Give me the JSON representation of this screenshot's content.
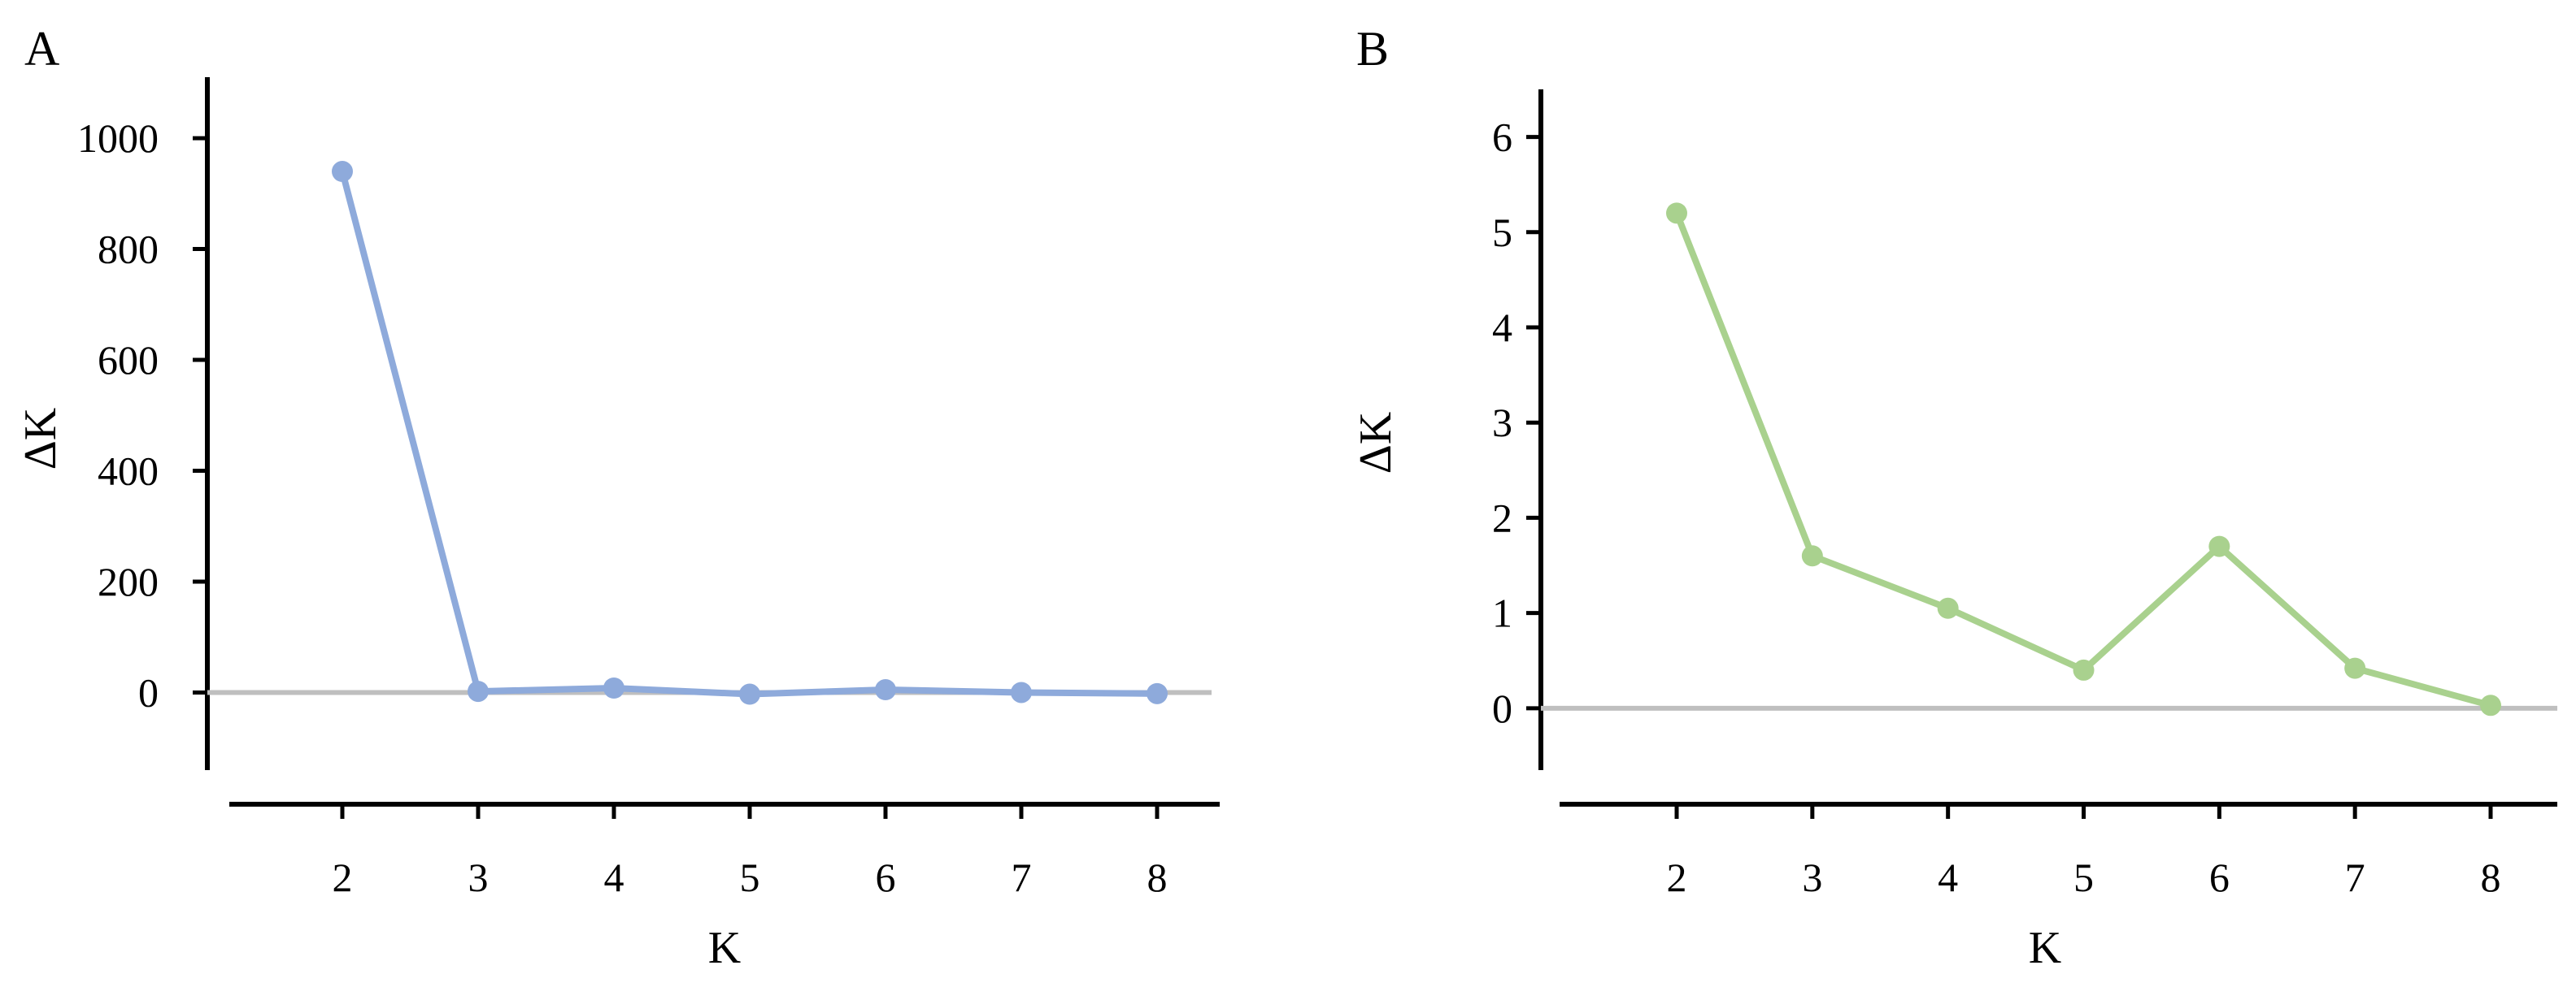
{
  "chart_data": [
    {
      "panel": "A",
      "type": "line",
      "title": "",
      "xlabel": "K",
      "ylabel": "ΔK",
      "x": [
        2,
        3,
        4,
        5,
        6,
        7,
        8
      ],
      "y": [
        940,
        2,
        8,
        -3,
        5,
        0,
        -2
      ],
      "yticks": [
        0,
        200,
        400,
        600,
        800,
        1000
      ],
      "xlim": [
        1,
        8.4
      ],
      "ylim": [
        -140,
        1110
      ],
      "baseline": 0,
      "grid": false,
      "colors": {
        "series": "#8eaadb",
        "baseline": "#bfbfbf",
        "axes": "#000000"
      }
    },
    {
      "panel": "B",
      "type": "line",
      "title": "",
      "xlabel": "K",
      "ylabel": "ΔK",
      "x": [
        2,
        3,
        4,
        5,
        6,
        7,
        8
      ],
      "y": [
        5.2,
        1.6,
        1.05,
        0.4,
        1.7,
        0.42,
        0.03
      ],
      "yticks": [
        0,
        1,
        2,
        3,
        4,
        5,
        6
      ],
      "xlim": [
        1,
        8.5
      ],
      "ylim": [
        -0.65,
        6.5
      ],
      "baseline": 0,
      "grid": false,
      "colors": {
        "series": "#a9d18e",
        "baseline": "#bfbfbf",
        "axes": "#000000"
      }
    }
  ]
}
